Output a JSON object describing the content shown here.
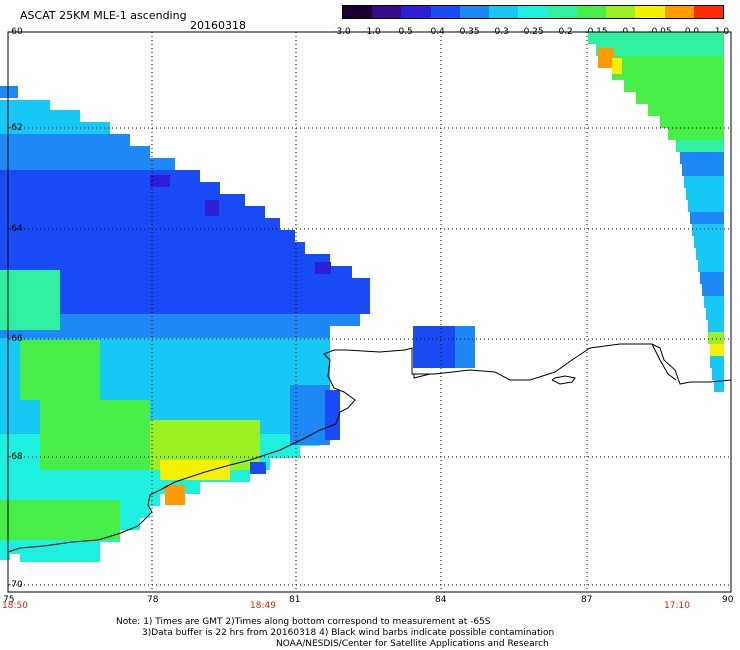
{
  "header": {
    "title": "ASCAT 25KM MLE-1 ascending",
    "date": "20160318"
  },
  "colorbar": {
    "labels": [
      "-3.0",
      "-1.0",
      "-0.5",
      "-0.4",
      "-0.35",
      "-0.3",
      "-0.25",
      "-0.2",
      "-0.15",
      "-0.1",
      "-0.05",
      "0.0",
      "1.0"
    ],
    "colors": [
      "#1a0033",
      "#3a0a8c",
      "#2d1fd6",
      "#1a4cf5",
      "#1f88f7",
      "#16c8f5",
      "#1ef0e0",
      "#2ef0a0",
      "#48ee48",
      "#9af020",
      "#f5f000",
      "#ff9a00",
      "#ff2a00"
    ]
  },
  "axes": {
    "lat_labels": [
      "-60",
      "-62",
      "-64",
      "-66",
      "-68",
      "-70"
    ],
    "lon_labels": [
      "75",
      "78",
      "81",
      "84",
      "87",
      "90"
    ]
  },
  "times": [
    "18:50",
    "18:49",
    "17:10"
  ],
  "notes": [
    "Note: 1) Times are GMT 2)Times along bottom correspond to measurement at -65S",
    "3)Data buffer is 22 hrs from 20160318 4) Black wind barbs indicate possible contamination",
    "NOAA/NESDIS/Center for Satellite Applications and Research"
  ],
  "colors": {
    "label_red": "#d42a00",
    "grid": "#000000"
  }
}
